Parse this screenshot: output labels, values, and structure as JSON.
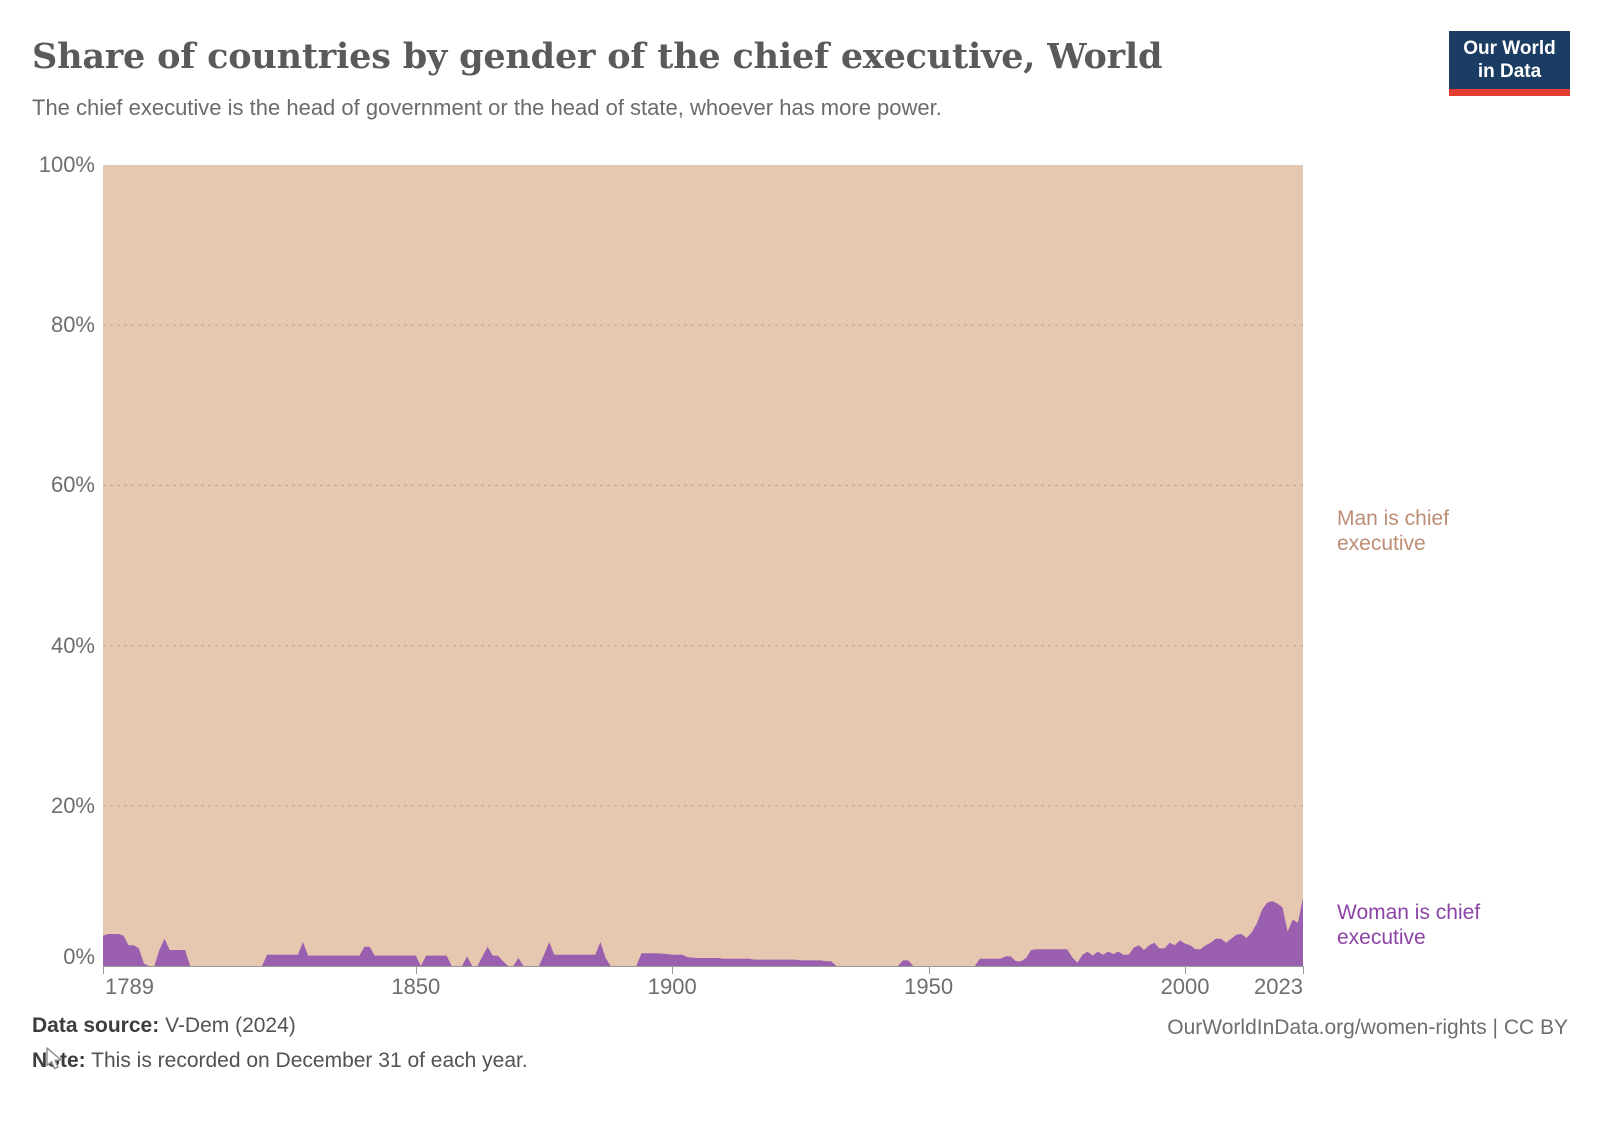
{
  "header": {
    "title": "Share of countries by gender of the chief executive, World",
    "subtitle": "The chief executive is the head of government or the head of state, whoever has more power."
  },
  "logo": {
    "line1": "Our World",
    "line2": "in Data",
    "bg_color": "#1c3d63",
    "accent_color": "#e23d33"
  },
  "chart_data": {
    "type": "area",
    "stacked": true,
    "unit": "%",
    "x_range": [
      1789,
      2023
    ],
    "y_range": [
      0,
      100
    ],
    "grid": true,
    "y_ticks": [
      {
        "value": 0,
        "label": "0%"
      },
      {
        "value": 20,
        "label": "20%"
      },
      {
        "value": 40,
        "label": "40%"
      },
      {
        "value": 60,
        "label": "60%"
      },
      {
        "value": 80,
        "label": "80%"
      },
      {
        "value": 100,
        "label": "100%"
      }
    ],
    "x_ticks": [
      {
        "year": 1789,
        "label": "1789",
        "align": "start"
      },
      {
        "year": 1850,
        "label": "1850",
        "align": "middle"
      },
      {
        "year": 1900,
        "label": "1900",
        "align": "middle"
      },
      {
        "year": 1950,
        "label": "1950",
        "align": "middle"
      },
      {
        "year": 2000,
        "label": "2000",
        "align": "middle"
      },
      {
        "year": 2023,
        "label": "2023",
        "align": "end"
      }
    ],
    "series": [
      {
        "name": "Woman is chief executive",
        "color": "#9a5fae",
        "label_color": "#8c44a6",
        "points": [
          [
            1789,
            3.8
          ],
          [
            1790,
            4.0
          ],
          [
            1792,
            4.0
          ],
          [
            1793,
            3.8
          ],
          [
            1794,
            2.6
          ],
          [
            1795,
            2.6
          ],
          [
            1796,
            2.2
          ],
          [
            1797,
            0.3
          ],
          [
            1798,
            0
          ],
          [
            1799,
            0
          ],
          [
            1800,
            2.0
          ],
          [
            1801,
            3.4
          ],
          [
            1802,
            2.0
          ],
          [
            1805,
            2.0
          ],
          [
            1806,
            0
          ],
          [
            1820,
            0
          ],
          [
            1821,
            1.4
          ],
          [
            1827,
            1.4
          ],
          [
            1828,
            3.0
          ],
          [
            1829,
            1.3
          ],
          [
            1839,
            1.3
          ],
          [
            1840,
            2.4
          ],
          [
            1841,
            2.4
          ],
          [
            1842,
            1.3
          ],
          [
            1850,
            1.3
          ],
          [
            1851,
            0
          ],
          [
            1852,
            1.3
          ],
          [
            1856,
            1.3
          ],
          [
            1857,
            0
          ],
          [
            1859,
            0
          ],
          [
            1860,
            1.2
          ],
          [
            1861,
            0
          ],
          [
            1862,
            0
          ],
          [
            1863,
            1.2
          ],
          [
            1864,
            2.4
          ],
          [
            1865,
            1.3
          ],
          [
            1866,
            1.3
          ],
          [
            1867,
            0.6
          ],
          [
            1868,
            0
          ],
          [
            1869,
            0
          ],
          [
            1870,
            1.0
          ],
          [
            1871,
            0
          ],
          [
            1874,
            0
          ],
          [
            1875,
            1.4
          ],
          [
            1876,
            3.0
          ],
          [
            1877,
            1.4
          ],
          [
            1885,
            1.4
          ],
          [
            1886,
            3.0
          ],
          [
            1887,
            1.0
          ],
          [
            1888,
            0
          ],
          [
            1893,
            0
          ],
          [
            1894,
            1.6
          ],
          [
            1897,
            1.6
          ],
          [
            1899,
            1.5
          ],
          [
            1900,
            1.4
          ],
          [
            1902,
            1.4
          ],
          [
            1903,
            1.1
          ],
          [
            1905,
            1.0
          ],
          [
            1909,
            1.0
          ],
          [
            1910,
            0.9
          ],
          [
            1915,
            0.9
          ],
          [
            1916,
            0.8
          ],
          [
            1924,
            0.8
          ],
          [
            1925,
            0.7
          ],
          [
            1929,
            0.7
          ],
          [
            1930,
            0.6
          ],
          [
            1931,
            0.6
          ],
          [
            1932,
            0
          ],
          [
            1944,
            0
          ],
          [
            1945,
            0.7
          ],
          [
            1946,
            0.7
          ],
          [
            1947,
            0
          ],
          [
            1959,
            0
          ],
          [
            1960,
            0.9
          ],
          [
            1964,
            0.9
          ],
          [
            1965,
            1.2
          ],
          [
            1966,
            1.2
          ],
          [
            1967,
            0.6
          ],
          [
            1968,
            0.6
          ],
          [
            1969,
            1.0
          ],
          [
            1970,
            2.0
          ],
          [
            1971,
            2.1
          ],
          [
            1977,
            2.1
          ],
          [
            1978,
            1.1
          ],
          [
            1979,
            0.4
          ],
          [
            1980,
            1.4
          ],
          [
            1981,
            1.8
          ],
          [
            1982,
            1.3
          ],
          [
            1983,
            1.8
          ],
          [
            1984,
            1.4
          ],
          [
            1985,
            1.8
          ],
          [
            1986,
            1.5
          ],
          [
            1987,
            1.8
          ],
          [
            1988,
            1.4
          ],
          [
            1989,
            1.4
          ],
          [
            1990,
            2.3
          ],
          [
            1991,
            2.6
          ],
          [
            1992,
            2.0
          ],
          [
            1993,
            2.6
          ],
          [
            1994,
            2.9
          ],
          [
            1995,
            2.2
          ],
          [
            1996,
            2.2
          ],
          [
            1997,
            2.9
          ],
          [
            1998,
            2.6
          ],
          [
            1999,
            3.2
          ],
          [
            2000,
            2.8
          ],
          [
            2001,
            2.6
          ],
          [
            2002,
            2.1
          ],
          [
            2003,
            2.1
          ],
          [
            2004,
            2.6
          ],
          [
            2005,
            2.9
          ],
          [
            2006,
            3.4
          ],
          [
            2007,
            3.4
          ],
          [
            2008,
            2.9
          ],
          [
            2009,
            3.4
          ],
          [
            2010,
            3.9
          ],
          [
            2011,
            4.0
          ],
          [
            2012,
            3.5
          ],
          [
            2013,
            4.2
          ],
          [
            2014,
            5.3
          ],
          [
            2015,
            7.0
          ],
          [
            2016,
            7.9
          ],
          [
            2017,
            8.1
          ],
          [
            2018,
            7.8
          ],
          [
            2019,
            7.3
          ],
          [
            2020,
            4.3
          ],
          [
            2021,
            5.8
          ],
          [
            2022,
            5.4
          ],
          [
            2023,
            8.5
          ]
        ]
      },
      {
        "name": "Man is chief executive",
        "color": "#e6c7b0",
        "label_color": "#bd8d75",
        "derived": "complement: 100% minus woman share (areas stack to 100%)"
      }
    ]
  },
  "footer": {
    "data_source_label": "Data source:",
    "data_source_value": "V-Dem (2024)",
    "note_label": "Note:",
    "note_text": "This is recorded on December 31 of each year.",
    "attribution": "OurWorldInData.org/women-rights | CC BY"
  }
}
